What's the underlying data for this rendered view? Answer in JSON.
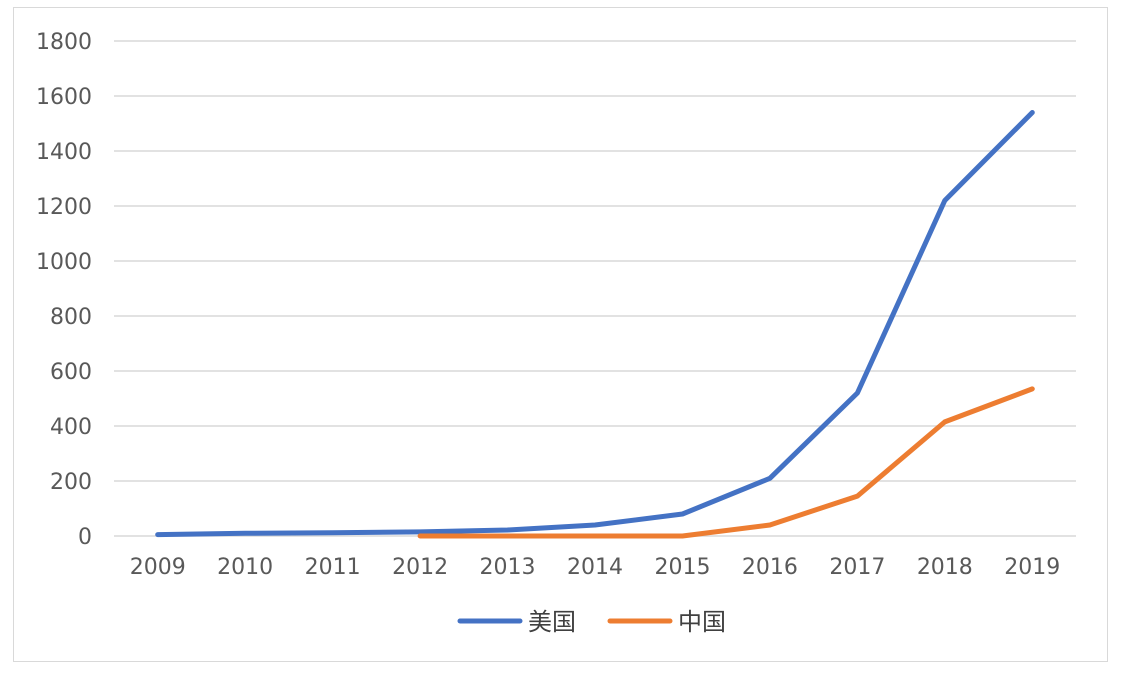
{
  "chart_data": {
    "type": "line",
    "title": "",
    "xlabel": "",
    "ylabel": "",
    "categories": [
      "2009",
      "2010",
      "2011",
      "2012",
      "2013",
      "2014",
      "2015",
      "2016",
      "2017",
      "2018",
      "2019"
    ],
    "ylim": [
      0,
      1800
    ],
    "yticks": [
      "0",
      "200",
      "400",
      "600",
      "800",
      "1000",
      "1200",
      "1400",
      "1600",
      "1800"
    ],
    "grid": true,
    "legend_position": "bottom",
    "series": [
      {
        "name": "美国",
        "color": "#4472c4",
        "values": [
          5,
          10,
          12,
          15,
          22,
          40,
          80,
          210,
          520,
          1220,
          1540
        ]
      },
      {
        "name": "中国",
        "color": "#ed7d31",
        "values": [
          null,
          null,
          null,
          0,
          0,
          0,
          0,
          40,
          145,
          415,
          535
        ]
      }
    ]
  }
}
